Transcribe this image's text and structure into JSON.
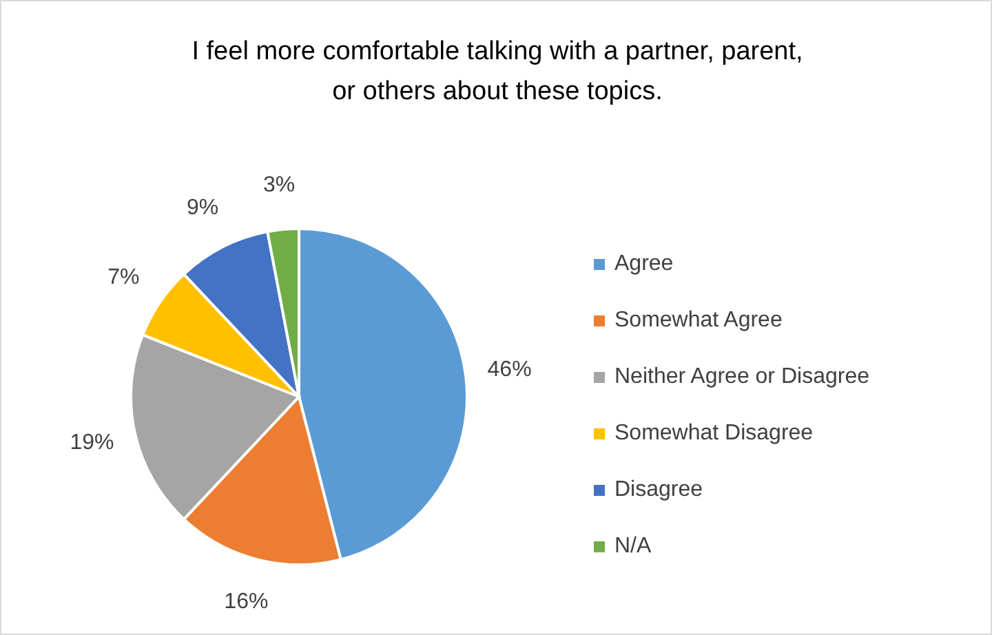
{
  "chart_data": {
    "type": "pie",
    "title": "I feel more comfortable talking with a partner, parent, or others about these topics.",
    "categories": [
      "Agree",
      "Somewhat Agree",
      "Neither Agree or Disagree",
      "Somewhat Disagree",
      "Disagree",
      "N/A"
    ],
    "values": [
      46,
      16,
      19,
      7,
      9,
      3
    ],
    "colors": [
      "#5b9bd5",
      "#ed7d31",
      "#a5a5a5",
      "#ffc000",
      "#4472c4",
      "#70ad47"
    ],
    "value_labels": [
      "46%",
      "16%",
      "19%",
      "7%",
      "9%",
      "3%"
    ],
    "legend": "right"
  }
}
